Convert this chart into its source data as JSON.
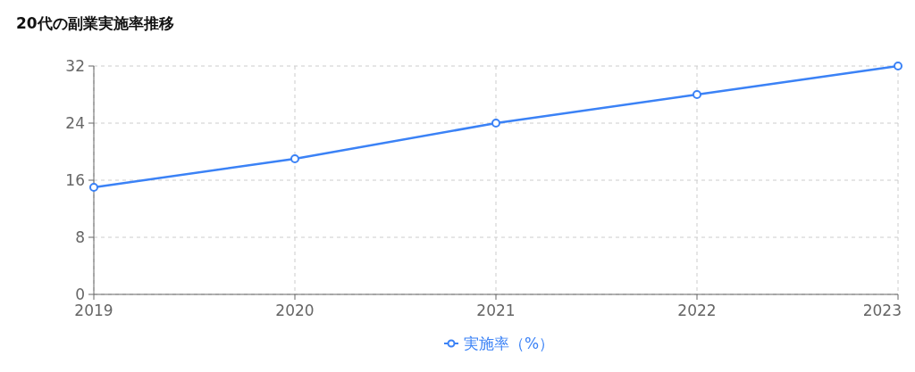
{
  "chart_data": {
    "type": "line",
    "title": "20代の副業実施率推移",
    "categories": [
      "2019",
      "2020",
      "2021",
      "2022",
      "2023"
    ],
    "series": [
      {
        "name": "実施率（%）",
        "color": "#3b82f6",
        "values": [
          15,
          19,
          24,
          28,
          32
        ]
      }
    ],
    "ylim": [
      0,
      32
    ],
    "yticks": [
      0,
      8,
      16,
      24,
      32
    ],
    "grid": true,
    "legend": "bottom",
    "marker": "circle",
    "line_style": "solid"
  }
}
